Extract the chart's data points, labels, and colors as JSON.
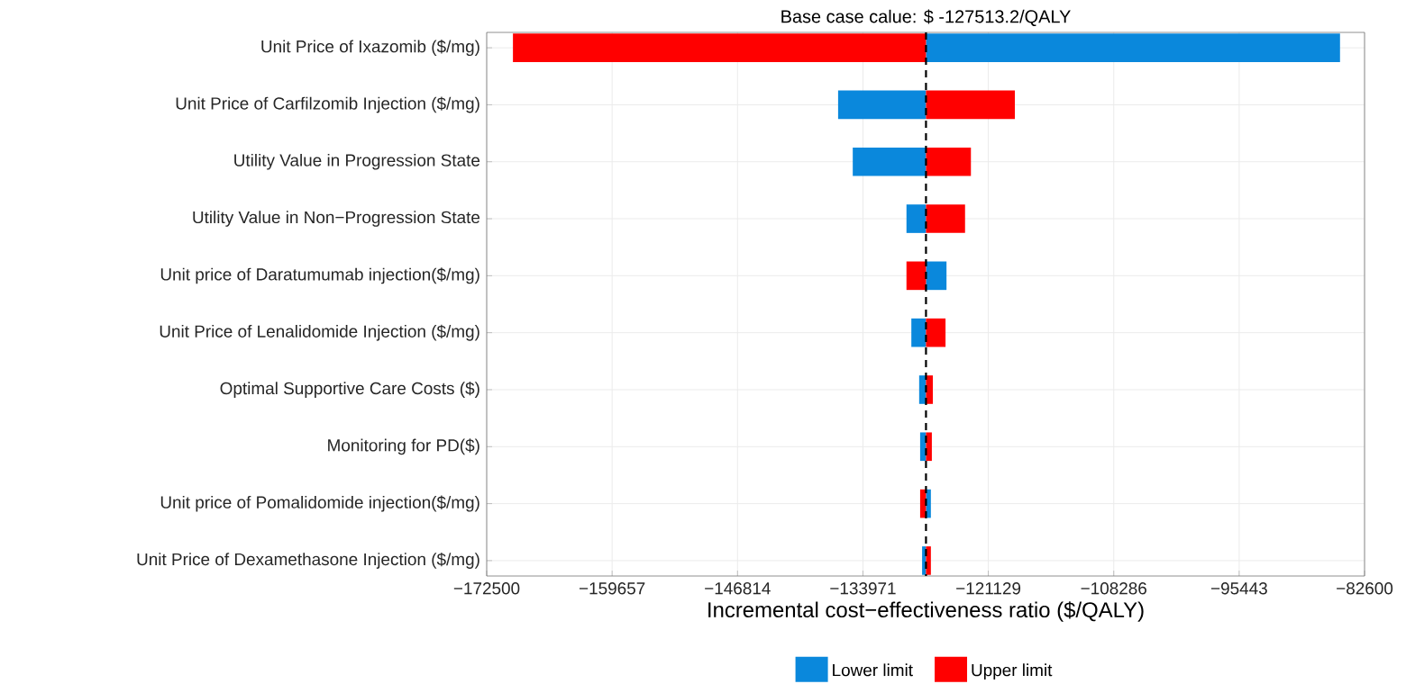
{
  "chart_data": {
    "type": "bar",
    "orientation": "horizontal",
    "title": "Base case calue: $ -127513.2/QALY",
    "xlabel": "Incremental cost−effectiveness ratio ($/QALY)",
    "categories": [
      "Unit Price of Ixazomib ($/mg)",
      "Unit Price of Carfilzomib Injection ($/mg)",
      "Utility Value in Progression State",
      "Utility Value in Non−Progression State",
      "Unit price of Daratumumab injection($/mg)",
      "Unit Price of Lenalidomide Injection ($/mg)",
      "Optimal Supportive Care Costs ($)",
      "Monitoring for PD($)",
      "Unit price of Pomalidomide injection($/mg)",
      "Unit Price of Dexamethasone Injection ($/mg)"
    ],
    "series": [
      {
        "name": "Lower limit",
        "color": "#0a88dc",
        "base": [
          -127513.2,
          -127513.2,
          -127513.2,
          -127513.2,
          -127513.2,
          -127513.2,
          -127513.2,
          -127513.2,
          -127513.2,
          -127513.2
        ],
        "values": [
          42400,
          -9000,
          -7500,
          -2000,
          2100,
          -1500,
          -700,
          -600,
          500,
          -400
        ]
      },
      {
        "name": "Upper limit",
        "color": "#ff0000",
        "base": [
          -127513.2,
          -127513.2,
          -127513.2,
          -127513.2,
          -127513.2,
          -127513.2,
          -127513.2,
          -127513.2,
          -127513.2,
          -127513.2
        ],
        "values": [
          -42300,
          9100,
          4600,
          4000,
          -2000,
          2000,
          700,
          600,
          -600,
          500
        ]
      }
    ],
    "xlim": [
      -172500,
      -82600
    ],
    "xticks": [
      {
        "value": -172500,
        "label": "−172500"
      },
      {
        "value": -159657,
        "label": "−159657"
      },
      {
        "value": -146814,
        "label": "−146814"
      },
      {
        "value": -133971,
        "label": "−133971"
      },
      {
        "value": -121129,
        "label": "−121129"
      },
      {
        "value": -108286,
        "label": "−108286"
      },
      {
        "value": -95443,
        "label": "−95443"
      },
      {
        "value": -82600,
        "label": "−82600"
      }
    ],
    "ref_lines": [
      {
        "axis": "x",
        "value": -127513.2,
        "line_style": "dashed",
        "color": "#000000"
      }
    ],
    "grid": true,
    "legend": "bottom"
  }
}
